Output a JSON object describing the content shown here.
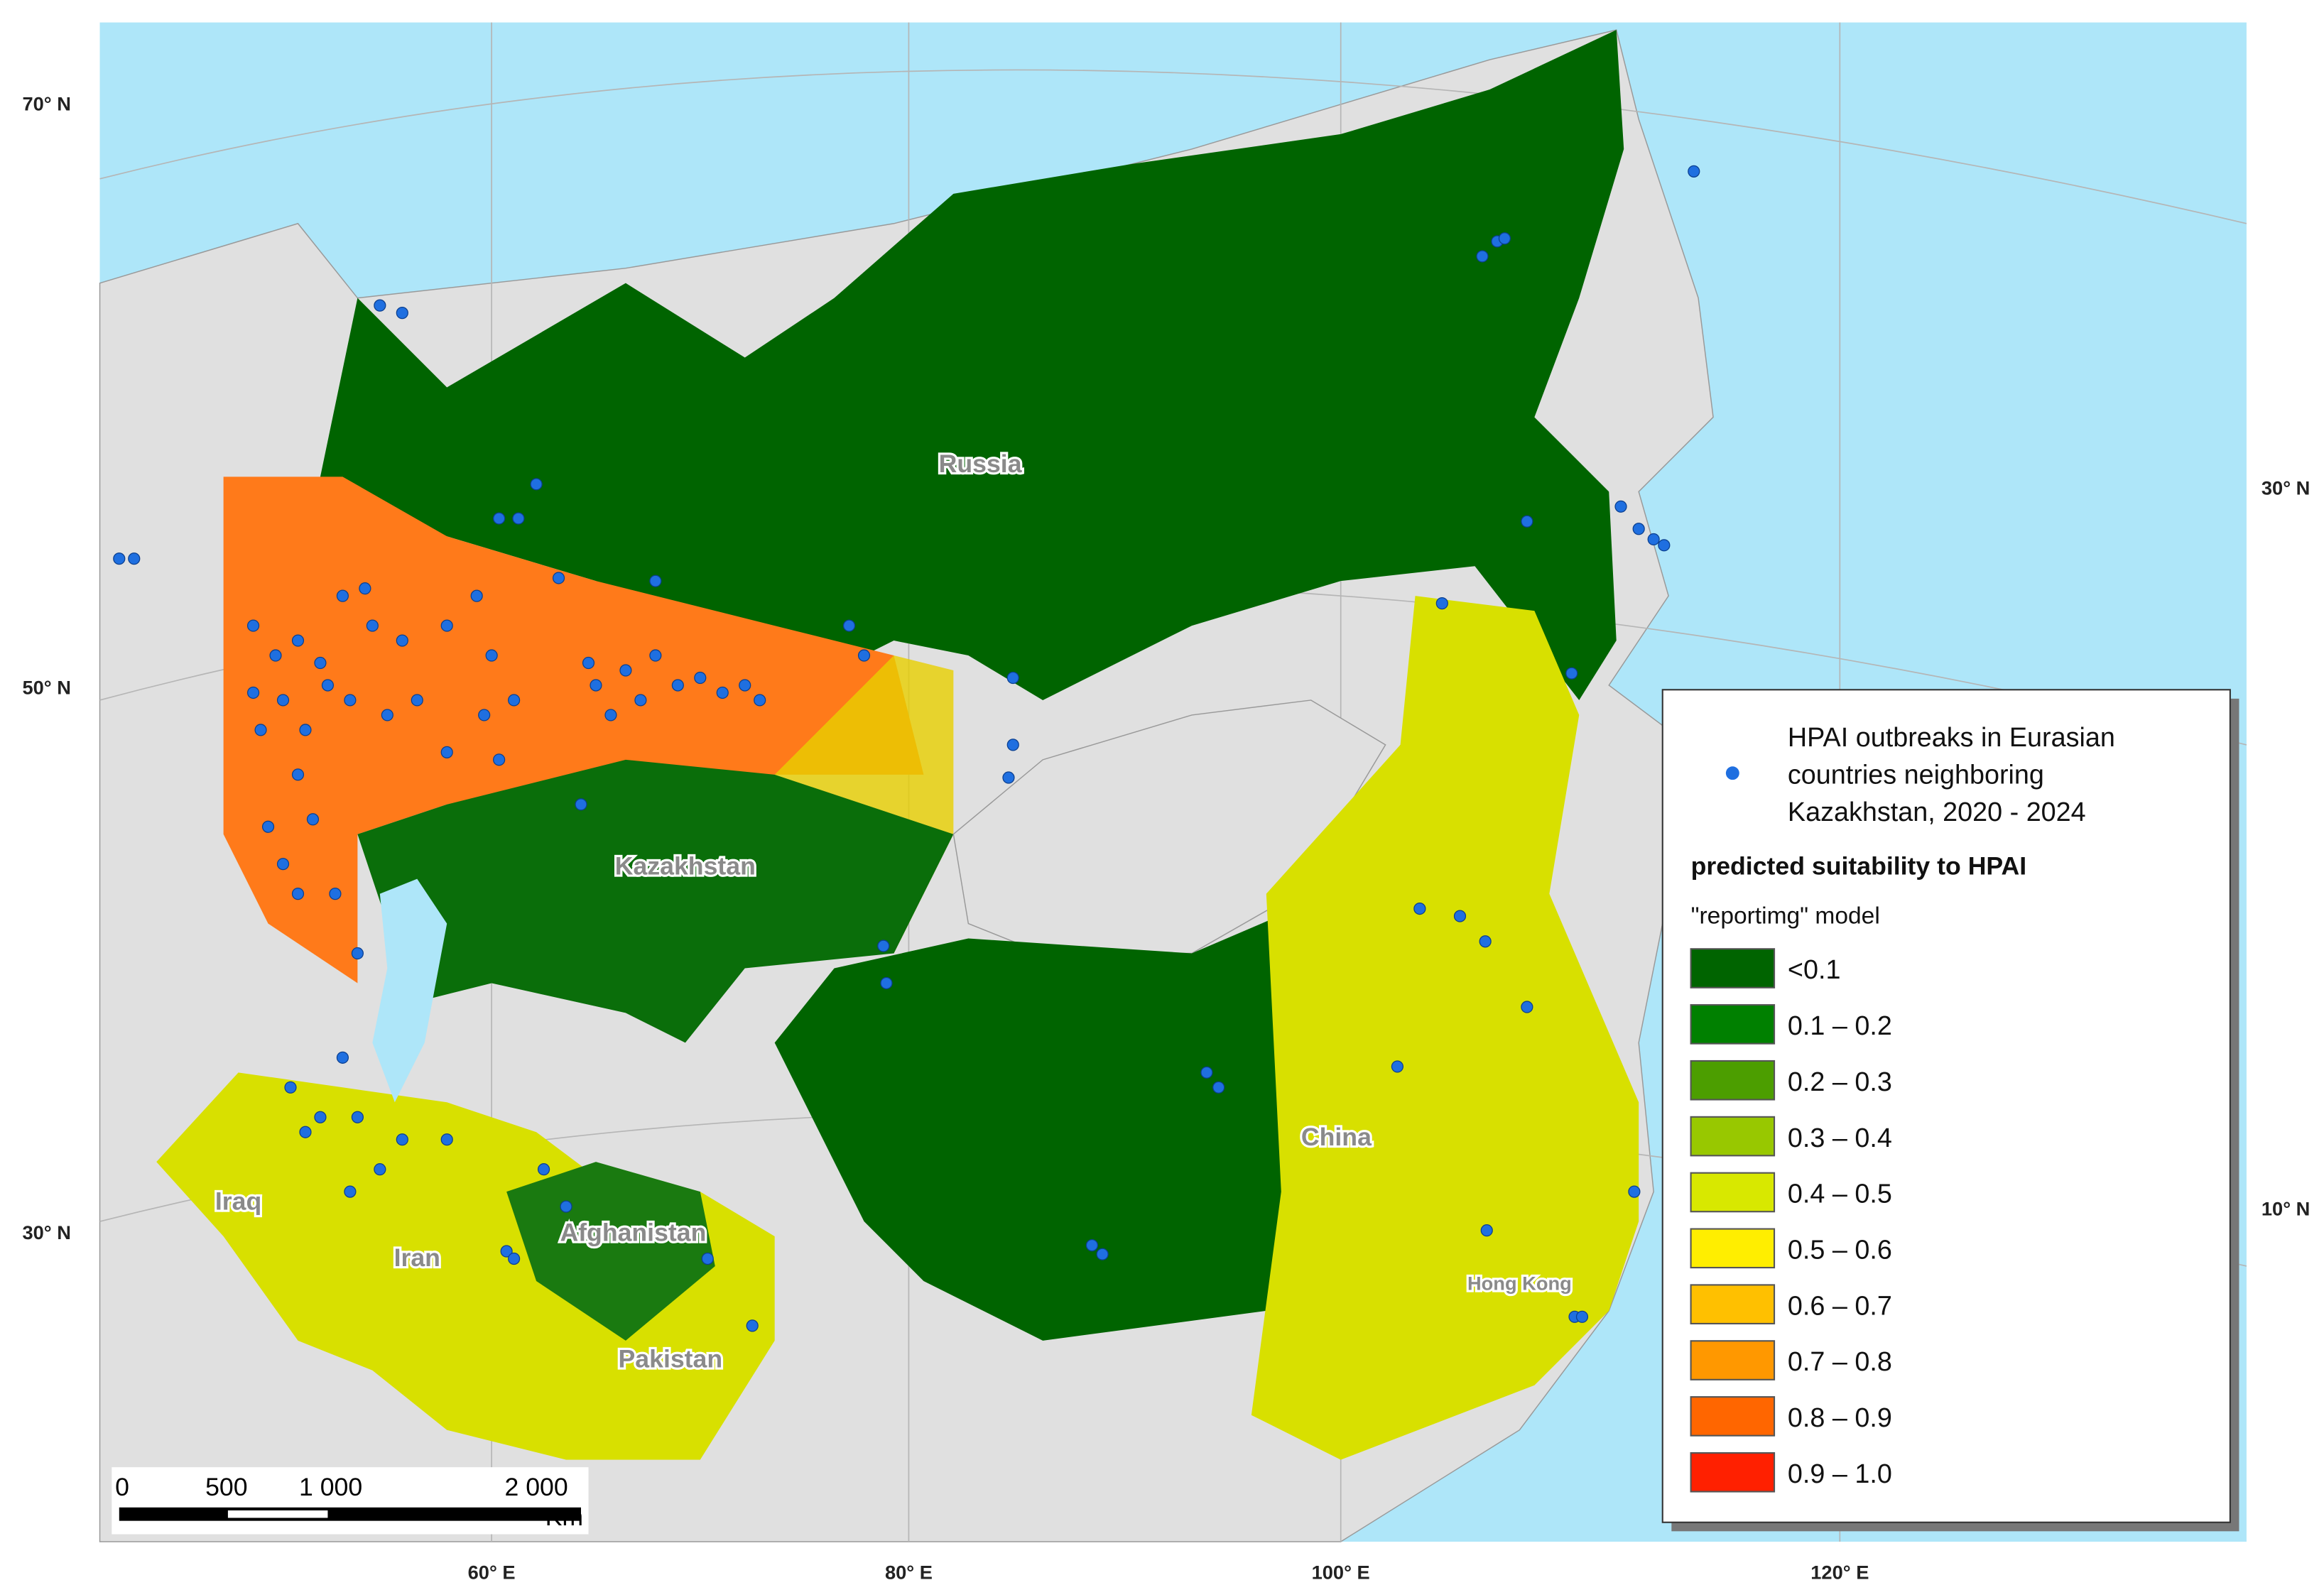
{
  "map": {
    "lat_labels": [
      "70° N",
      "50° N",
      "30° N",
      "30° N",
      "10° N"
    ],
    "lon_labels": [
      "60° E",
      "80° E",
      "100° E",
      "120° E"
    ],
    "regions": [
      "Russia",
      "Kazakhstan",
      "China",
      "Iraq",
      "Iran",
      "Afghanistan",
      "Pakistan",
      "Hong Kong"
    ],
    "legend": {
      "points_label": [
        "HPAI outbreaks in Eurasian",
        "countries neighboring",
        "Kazakhstan, 2020 - 2024"
      ],
      "title": "predicted suitability to HPAI",
      "subtitle": "\"reportimg\" model",
      "classes": [
        {
          "label": "<0.1",
          "color": "#006400"
        },
        {
          "label": "0.1 – 0.2",
          "color": "#008000"
        },
        {
          "label": "0.2 – 0.3",
          "color": "#4c9e00"
        },
        {
          "label": "0.3 – 0.4",
          "color": "#98c800"
        },
        {
          "label": "0.4 – 0.5",
          "color": "#d8e800"
        },
        {
          "label": "0.5 – 0.6",
          "color": "#ffee00"
        },
        {
          "label": "0.6 – 0.7",
          "color": "#ffc000"
        },
        {
          "label": "0.7 – 0.8",
          "color": "#ff9800"
        },
        {
          "label": "0.8 – 0.9",
          "color": "#ff6600"
        },
        {
          "label": "0.9 – 1.0",
          "color": "#ff2000"
        }
      ]
    },
    "scale_bar": {
      "labels": [
        "0",
        "500",
        "1 000",
        "2 000"
      ],
      "unit": "Km"
    }
  }
}
